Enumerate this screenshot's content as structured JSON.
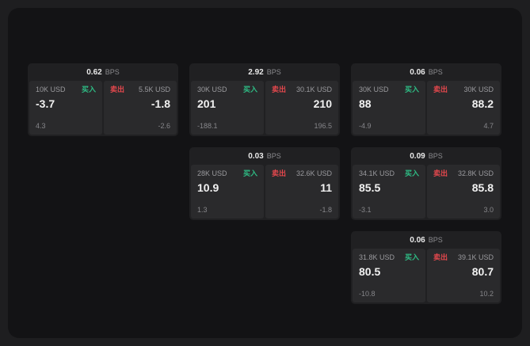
{
  "labels": {
    "buy": "买入",
    "sell": "卖出",
    "bps": "BPS"
  },
  "colors": {
    "buy": "#2ebd85",
    "sell": "#e5484d"
  },
  "cards": [
    {
      "row": 1,
      "col": 1,
      "bps": "0.62",
      "buy": {
        "size": "10K USD",
        "price": "-3.7",
        "delta": "4.3"
      },
      "sell": {
        "size": "5.5K USD",
        "price": "-1.8",
        "delta": "-2.6"
      }
    },
    {
      "row": 1,
      "col": 2,
      "bps": "2.92",
      "buy": {
        "size": "30K USD",
        "price": "201",
        "delta": "-188.1"
      },
      "sell": {
        "size": "30.1K USD",
        "price": "210",
        "delta": "196.5"
      }
    },
    {
      "row": 1,
      "col": 3,
      "bps": "0.06",
      "buy": {
        "size": "30K USD",
        "price": "88",
        "delta": "-4.9"
      },
      "sell": {
        "size": "30K USD",
        "price": "88.2",
        "delta": "4.7"
      }
    },
    {
      "row": 2,
      "col": 2,
      "bps": "0.03",
      "buy": {
        "size": "28K USD",
        "price": "10.9",
        "delta": "1.3"
      },
      "sell": {
        "size": "32.6K USD",
        "price": "11",
        "delta": "-1.8"
      }
    },
    {
      "row": 2,
      "col": 3,
      "bps": "0.09",
      "buy": {
        "size": "34.1K USD",
        "price": "85.5",
        "delta": "-3.1"
      },
      "sell": {
        "size": "32.8K USD",
        "price": "85.8",
        "delta": "3.0"
      }
    },
    {
      "row": 3,
      "col": 3,
      "bps": "0.06",
      "buy": {
        "size": "31.8K USD",
        "price": "80.5",
        "delta": "-10.8"
      },
      "sell": {
        "size": "39.1K USD",
        "price": "80.7",
        "delta": "10.2"
      }
    }
  ]
}
